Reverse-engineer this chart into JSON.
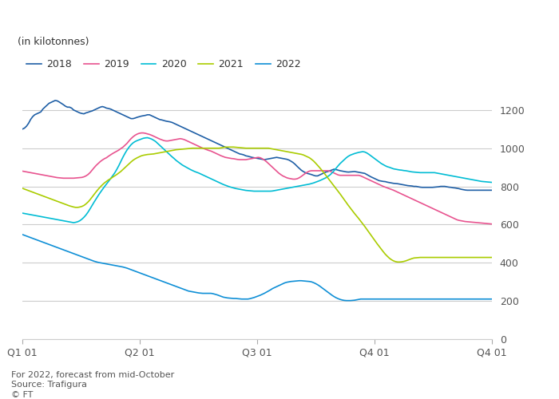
{
  "ylabel": "(in kilotonnes)",
  "ylim": [
    0,
    1400
  ],
  "yticks": [
    0,
    200,
    400,
    600,
    800,
    1000,
    1200
  ],
  "footnote1": "For 2022, forecast from mid-October",
  "footnote2": "Source: Trafigura",
  "footnote3": "© FT",
  "background_color": "#ffffff",
  "colors": {
    "2018": "#1f5fa6",
    "2019": "#e8538f",
    "2020": "#00bcd4",
    "2021": "#aacc00",
    "2022": "#0f8fd6"
  },
  "x_tick_positions": [
    0,
    0.25,
    0.5,
    0.75,
    1.0
  ],
  "x_tick_labels": [
    "Q1 01",
    "Q2 01",
    "Q3 01",
    "Q4 01",
    "Q4 01"
  ],
  "series_2018": [
    1100,
    1105,
    1115,
    1130,
    1150,
    1165,
    1175,
    1180,
    1185,
    1190,
    1205,
    1215,
    1225,
    1235,
    1240,
    1245,
    1250,
    1248,
    1242,
    1235,
    1228,
    1220,
    1215,
    1215,
    1210,
    1200,
    1195,
    1190,
    1185,
    1182,
    1180,
    1185,
    1188,
    1192,
    1195,
    1200,
    1205,
    1210,
    1215,
    1218,
    1215,
    1210,
    1208,
    1205,
    1200,
    1195,
    1190,
    1185,
    1180,
    1175,
    1170,
    1165,
    1160,
    1155,
    1155,
    1158,
    1162,
    1165,
    1168,
    1170,
    1172,
    1175,
    1175,
    1170,
    1165,
    1160,
    1155,
    1150,
    1148,
    1145,
    1142,
    1140,
    1138,
    1135,
    1130,
    1125,
    1120,
    1115,
    1110,
    1105,
    1100,
    1095,
    1090,
    1085,
    1080,
    1075,
    1070,
    1065,
    1060,
    1055,
    1050,
    1045,
    1040,
    1035,
    1030,
    1025,
    1020,
    1015,
    1010,
    1005,
    1000,
    995,
    990,
    985,
    980,
    975,
    970,
    968,
    965,
    960,
    958,
    955,
    952,
    950,
    948,
    946,
    944,
    942,
    940,
    942,
    944,
    946,
    948,
    950,
    952,
    950,
    948,
    946,
    944,
    942,
    938,
    932,
    925,
    916,
    905,
    895,
    885,
    878,
    872,
    868,
    865,
    862,
    858,
    855,
    855,
    860,
    865,
    870,
    875,
    878,
    882,
    886,
    890,
    888,
    885,
    882,
    880,
    878,
    876,
    875,
    876,
    877,
    878,
    876,
    874,
    872,
    870,
    868,
    862,
    856,
    850,
    845,
    840,
    835,
    830,
    828,
    826,
    825,
    822,
    820,
    818,
    816,
    815,
    814,
    812,
    810,
    808,
    806,
    804,
    803,
    802,
    800,
    800,
    798,
    796,
    795,
    795,
    795,
    795,
    795,
    795,
    796,
    797,
    798,
    800,
    800,
    800,
    798,
    796,
    795,
    793,
    792,
    790,
    788,
    785,
    783,
    781,
    780,
    780,
    780,
    780,
    780,
    780,
    780,
    780,
    780,
    780,
    780,
    780,
    780
  ],
  "series_2019": [
    880,
    878,
    876,
    874,
    872,
    870,
    868,
    866,
    864,
    862,
    860,
    858,
    856,
    854,
    852,
    850,
    848,
    846,
    845,
    844,
    843,
    843,
    843,
    843,
    843,
    843,
    844,
    845,
    846,
    847,
    850,
    855,
    862,
    872,
    885,
    898,
    910,
    920,
    930,
    938,
    945,
    950,
    958,
    965,
    972,
    978,
    984,
    990,
    998,
    1005,
    1015,
    1025,
    1038,
    1050,
    1060,
    1068,
    1074,
    1078,
    1080,
    1080,
    1078,
    1075,
    1072,
    1068,
    1063,
    1058,
    1053,
    1048,
    1044,
    1040,
    1038,
    1038,
    1040,
    1042,
    1044,
    1046,
    1048,
    1050,
    1048,
    1045,
    1040,
    1035,
    1030,
    1025,
    1020,
    1015,
    1010,
    1005,
    1000,
    996,
    992,
    988,
    985,
    980,
    975,
    970,
    965,
    960,
    956,
    952,
    950,
    948,
    946,
    945,
    943,
    941,
    940,
    940,
    940,
    940,
    942,
    944,
    946,
    948,
    950,
    952,
    950,
    945,
    938,
    930,
    920,
    910,
    900,
    890,
    880,
    870,
    862,
    855,
    850,
    845,
    842,
    840,
    838,
    838,
    840,
    845,
    852,
    860,
    868,
    875,
    880,
    882,
    882,
    882,
    882,
    882,
    882,
    882,
    882,
    882,
    880,
    875,
    870,
    865,
    860,
    858,
    858,
    858,
    858,
    858,
    858,
    858,
    858,
    858,
    858,
    855,
    850,
    845,
    840,
    835,
    830,
    825,
    820,
    815,
    810,
    805,
    800,
    796,
    792,
    788,
    784,
    780,
    775,
    770,
    765,
    760,
    755,
    750,
    745,
    740,
    735,
    730,
    725,
    720,
    715,
    710,
    705,
    700,
    695,
    690,
    685,
    680,
    675,
    670,
    665,
    660,
    655,
    650,
    645,
    640,
    635,
    630,
    625,
    622,
    620,
    618,
    616,
    615,
    614,
    613,
    612,
    611,
    610,
    609,
    608,
    607,
    606,
    605,
    604,
    603
  ],
  "series_2020": [
    660,
    658,
    656,
    654,
    652,
    650,
    648,
    646,
    644,
    642,
    640,
    638,
    636,
    634,
    632,
    630,
    628,
    626,
    624,
    622,
    620,
    618,
    616,
    614,
    612,
    610,
    612,
    615,
    620,
    628,
    638,
    650,
    665,
    682,
    700,
    718,
    735,
    752,
    768,
    783,
    798,
    812,
    826,
    840,
    855,
    870,
    888,
    908,
    930,
    952,
    972,
    990,
    1005,
    1018,
    1028,
    1035,
    1040,
    1044,
    1048,
    1052,
    1054,
    1055,
    1052,
    1048,
    1042,
    1035,
    1025,
    1015,
    1005,
    995,
    985,
    975,
    965,
    955,
    946,
    936,
    928,
    920,
    912,
    906,
    900,
    894,
    888,
    883,
    878,
    874,
    870,
    865,
    860,
    855,
    850,
    845,
    840,
    835,
    830,
    825,
    820,
    815,
    810,
    806,
    802,
    798,
    795,
    792,
    789,
    787,
    785,
    783,
    781,
    779,
    778,
    777,
    776,
    775,
    775,
    775,
    775,
    775,
    775,
    775,
    775,
    775,
    776,
    778,
    780,
    782,
    784,
    786,
    788,
    790,
    792,
    794,
    796,
    798,
    800,
    802,
    804,
    806,
    808,
    810,
    812,
    815,
    818,
    822,
    826,
    830,
    835,
    840,
    845,
    852,
    860,
    870,
    882,
    895,
    908,
    920,
    930,
    940,
    950,
    958,
    964,
    968,
    972,
    975,
    978,
    980,
    982,
    980,
    975,
    968,
    960,
    952,
    944,
    936,
    928,
    920,
    914,
    908,
    903,
    900,
    896,
    892,
    890,
    888,
    886,
    885,
    883,
    882,
    880,
    878,
    876,
    875,
    874,
    873,
    872,
    872,
    872,
    872,
    872,
    872,
    872,
    872,
    870,
    868,
    866,
    864,
    862,
    860,
    858,
    856,
    854,
    852,
    850,
    848,
    846,
    844,
    842,
    840,
    838,
    836,
    834,
    832,
    830,
    828,
    826,
    825,
    824,
    823,
    822,
    821
  ],
  "series_2021": [
    790,
    786,
    782,
    778,
    774,
    770,
    766,
    762,
    758,
    754,
    750,
    746,
    742,
    738,
    734,
    730,
    726,
    722,
    718,
    714,
    710,
    706,
    702,
    698,
    695,
    692,
    690,
    690,
    692,
    695,
    700,
    708,
    718,
    730,
    744,
    758,
    772,
    785,
    797,
    808,
    818,
    826,
    834,
    840,
    848,
    855,
    862,
    870,
    878,
    888,
    898,
    908,
    918,
    928,
    937,
    944,
    950,
    955,
    960,
    963,
    965,
    967,
    968,
    969,
    970,
    972,
    974,
    976,
    978,
    980,
    982,
    984,
    986,
    988,
    990,
    992,
    993,
    994,
    995,
    996,
    997,
    998,
    999,
    1000,
    1000,
    1000,
    1000,
    1000,
    1000,
    1000,
    1000,
    1000,
    1000,
    1000,
    1000,
    1000,
    1000,
    1002,
    1004,
    1006,
    1006,
    1006,
    1006,
    1006,
    1005,
    1004,
    1003,
    1002,
    1001,
    1000,
    1000,
    1000,
    1000,
    1000,
    1000,
    1000,
    1000,
    1000,
    1000,
    1000,
    1000,
    998,
    996,
    994,
    992,
    990,
    988,
    986,
    984,
    982,
    980,
    978,
    976,
    974,
    972,
    970,
    968,
    965,
    960,
    955,
    950,
    942,
    933,
    922,
    910,
    898,
    885,
    872,
    858,
    844,
    830,
    816,
    802,
    788,
    774,
    760,
    745,
    730,
    715,
    700,
    686,
    672,
    658,
    645,
    632,
    618,
    604,
    590,
    575,
    560,
    545,
    530,
    515,
    500,
    486,
    472,
    458,
    445,
    434,
    424,
    416,
    410,
    406,
    404,
    404,
    405,
    407,
    410,
    414,
    418,
    422,
    425,
    426,
    427,
    428,
    428,
    428,
    428,
    428,
    428,
    428,
    428,
    428,
    428,
    428,
    428,
    428,
    428,
    428,
    428,
    428,
    428,
    428,
    428,
    428,
    428,
    428,
    428,
    428,
    428,
    428,
    428,
    428,
    428,
    428,
    428,
    428,
    428,
    428,
    428
  ],
  "series_2022": [
    548,
    544,
    540,
    536,
    532,
    528,
    524,
    520,
    516,
    512,
    508,
    504,
    500,
    496,
    492,
    488,
    484,
    480,
    476,
    472,
    468,
    464,
    460,
    456,
    452,
    448,
    444,
    440,
    436,
    432,
    428,
    424,
    420,
    416,
    412,
    408,
    405,
    402,
    400,
    398,
    396,
    394,
    392,
    390,
    388,
    386,
    384,
    382,
    380,
    378,
    375,
    372,
    368,
    364,
    360,
    356,
    352,
    348,
    344,
    340,
    336,
    332,
    328,
    324,
    320,
    316,
    312,
    308,
    304,
    300,
    296,
    292,
    288,
    284,
    280,
    276,
    272,
    268,
    264,
    260,
    256,
    252,
    250,
    248,
    246,
    244,
    242,
    241,
    240,
    240,
    240,
    240,
    240,
    238,
    235,
    232,
    228,
    224,
    220,
    218,
    216,
    215,
    214,
    213,
    213,
    212,
    211,
    210,
    210,
    210,
    210,
    212,
    215,
    218,
    222,
    226,
    230,
    235,
    240,
    246,
    252,
    258,
    265,
    270,
    275,
    280,
    285,
    290,
    295,
    298,
    300,
    302,
    303,
    304,
    305,
    306,
    306,
    305,
    304,
    303,
    302,
    300,
    296,
    291,
    285,
    278,
    270,
    262,
    254,
    246,
    238,
    230,
    223,
    217,
    212,
    208,
    205,
    203,
    202,
    202,
    202,
    203,
    204,
    206,
    208,
    210,
    210,
    210,
    210,
    210,
    210,
    210,
    210,
    210,
    210,
    210,
    210,
    210,
    210,
    210,
    210,
    210,
    210,
    210,
    210,
    210,
    210,
    210,
    210,
    210,
    210,
    210,
    210,
    210,
    210,
    210,
    210,
    210,
    210,
    210,
    210,
    210,
    210,
    210,
    210,
    210,
    210,
    210,
    210,
    210,
    210,
    210,
    210,
    210,
    210,
    210,
    210,
    210,
    210,
    210,
    210,
    210,
    210,
    210,
    210,
    210,
    210,
    210,
    210,
    210
  ]
}
